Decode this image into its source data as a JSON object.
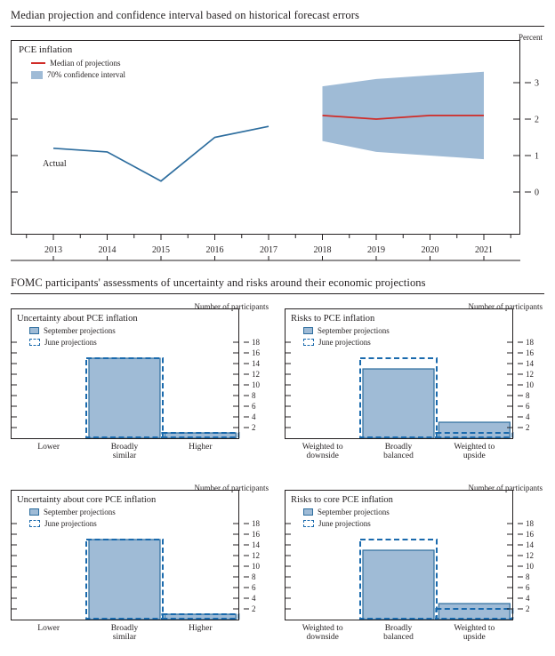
{
  "colors": {
    "band": "#9fbbd6",
    "bar_fill": "#9fbbd6",
    "bar_border": "#2d6d9e",
    "line_blue": "#2d6d9e",
    "median_red": "#d02b27",
    "june_dash": "#1a6aad",
    "axis": "#231f20"
  },
  "section2_title": "FOMC participants' assessments of uncertainty and risks around their economic projections",
  "chart_data": [
    {
      "id": "pce-inflation-fan",
      "type": "area",
      "title": "Median projection and confidence interval based on historical forecast errors",
      "unit_label": "Percent",
      "panel_label": "PCE inflation",
      "annotation": "Actual",
      "legend": [
        {
          "label": "Median of projections",
          "style": "line"
        },
        {
          "label": "70% confidence interval",
          "style": "box"
        }
      ],
      "x": [
        2013,
        2014,
        2015,
        2016,
        2017,
        2018,
        2019,
        2020,
        2021
      ],
      "y_ticks": [
        0,
        1,
        2,
        3
      ],
      "ylim": [
        -0.7,
        3.7
      ],
      "grid": false,
      "legend_position": "top-left",
      "series": [
        {
          "name": "Actual",
          "x": [
            2013,
            2014,
            2015,
            2016,
            2017
          ],
          "values": [
            1.2,
            1.1,
            0.3,
            1.5,
            1.8
          ]
        },
        {
          "name": "Median of projections",
          "x": [
            2018,
            2019,
            2020,
            2021
          ],
          "values": [
            2.1,
            2.0,
            2.1,
            2.1
          ]
        },
        {
          "name": "70% confidence interval upper",
          "x": [
            2018,
            2019,
            2020,
            2021
          ],
          "values": [
            2.9,
            3.1,
            3.2,
            3.3
          ]
        },
        {
          "name": "70% confidence interval lower",
          "x": [
            2018,
            2019,
            2020,
            2021
          ],
          "values": [
            1.4,
            1.1,
            1.0,
            0.9
          ]
        }
      ]
    },
    {
      "id": "uncertainty-pce-inflation",
      "type": "bar",
      "title": "Uncertainty about PCE inflation",
      "unit_label": "Number of participants",
      "categories": [
        "Lower",
        "Broadly\nsimilar",
        "Higher"
      ],
      "y_ticks": [
        2,
        4,
        6,
        8,
        10,
        12,
        14,
        16,
        18
      ],
      "ylim": [
        0,
        19
      ],
      "series": [
        {
          "name": "September projections",
          "values": [
            0,
            15,
            1
          ]
        },
        {
          "name": "June projections",
          "values": [
            0,
            15,
            1
          ]
        }
      ]
    },
    {
      "id": "risks-pce-inflation",
      "type": "bar",
      "title": "Risks to PCE inflation",
      "unit_label": "Number of participants",
      "categories": [
        "Weighted to\ndownside",
        "Broadly\nbalanced",
        "Weighted to\nupside"
      ],
      "y_ticks": [
        2,
        4,
        6,
        8,
        10,
        12,
        14,
        16,
        18
      ],
      "ylim": [
        0,
        19
      ],
      "series": [
        {
          "name": "September projections",
          "values": [
            0,
            13,
            3
          ]
        },
        {
          "name": "June projections",
          "values": [
            0,
            15,
            1
          ]
        }
      ]
    },
    {
      "id": "uncertainty-core-pce-inflation",
      "type": "bar",
      "title": "Uncertainty about core PCE inflation",
      "unit_label": "Number of participants",
      "categories": [
        "Lower",
        "Broadly\nsimilar",
        "Higher"
      ],
      "y_ticks": [
        2,
        4,
        6,
        8,
        10,
        12,
        14,
        16,
        18
      ],
      "ylim": [
        0,
        19
      ],
      "series": [
        {
          "name": "September projections",
          "values": [
            0,
            15,
            1
          ]
        },
        {
          "name": "June projections",
          "values": [
            0,
            15,
            1
          ]
        }
      ]
    },
    {
      "id": "risks-core-pce-inflation",
      "type": "bar",
      "title": "Risks to core PCE inflation",
      "unit_label": "Number of participants",
      "categories": [
        "Weighted to\ndownside",
        "Broadly\nbalanced",
        "Weighted to\nupside"
      ],
      "y_ticks": [
        2,
        4,
        6,
        8,
        10,
        12,
        14,
        16,
        18
      ],
      "ylim": [
        0,
        19
      ],
      "series": [
        {
          "name": "September projections",
          "values": [
            0,
            13,
            3
          ]
        },
        {
          "name": "June projections",
          "values": [
            0,
            15,
            2
          ]
        }
      ]
    }
  ]
}
